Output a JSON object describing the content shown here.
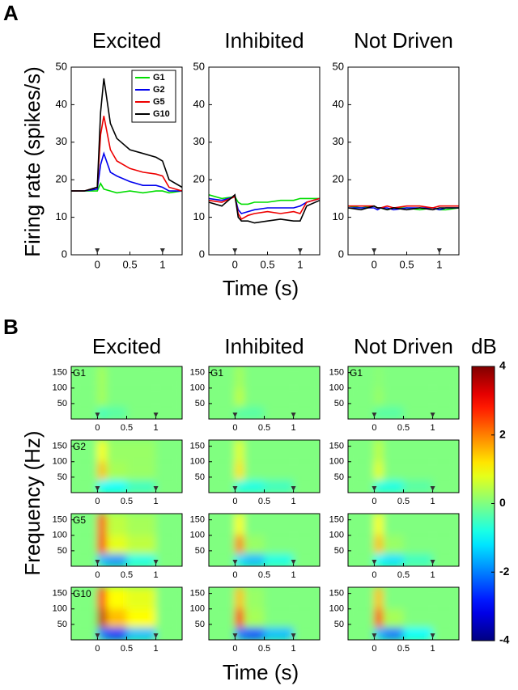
{
  "panel_a": {
    "label": "A",
    "y_label": "Firing rate (spikes/s)",
    "x_label": "Time (s)"
  },
  "panel_b": {
    "label": "B",
    "y_label": "Frequency (Hz)",
    "x_label": "Time (s)",
    "colorbar": {
      "title": "dB",
      "clim": [
        -4,
        4
      ],
      "ticks": [
        4,
        2,
        0,
        -2,
        -4
      ]
    }
  },
  "chart_data": [
    {
      "type": "line",
      "title": "Excited",
      "legend": "upper right",
      "xlim": [
        -0.4,
        1.3
      ],
      "ylim": [
        0,
        50
      ],
      "xticks": [
        0,
        0.5,
        1
      ],
      "yticks": [
        0,
        10,
        20,
        30,
        40,
        50
      ],
      "markers_x": [
        0,
        1
      ],
      "x": [
        -0.4,
        -0.2,
        0,
        0.05,
        0.1,
        0.2,
        0.3,
        0.5,
        0.7,
        0.9,
        1.0,
        1.1,
        1.3
      ],
      "series": [
        {
          "name": "G1",
          "color": "#00dd00",
          "values": [
            17,
            17,
            17,
            19,
            17.5,
            17,
            16.5,
            17,
            16.5,
            17,
            17,
            16.5,
            17
          ]
        },
        {
          "name": "G2",
          "color": "#0000ee",
          "values": [
            17,
            17,
            17.5,
            24,
            27,
            22,
            21,
            19.5,
            18.5,
            18.5,
            18,
            17,
            17
          ]
        },
        {
          "name": "G5",
          "color": "#ee0000",
          "values": [
            17,
            17,
            18,
            32,
            37,
            28,
            25,
            23,
            22,
            21.5,
            21,
            18,
            17
          ]
        },
        {
          "name": "G10",
          "color": "#000000",
          "values": [
            17,
            17,
            18,
            38,
            47,
            35,
            31,
            28,
            27,
            26,
            25,
            20,
            18
          ]
        }
      ]
    },
    {
      "type": "line",
      "title": "Inhibited",
      "xlim": [
        -0.4,
        1.3
      ],
      "ylim": [
        0,
        50
      ],
      "xticks": [
        0,
        0.5,
        1
      ],
      "yticks": [
        0,
        10,
        20,
        30,
        40,
        50
      ],
      "markers_x": [
        0,
        1
      ],
      "x": [
        -0.4,
        -0.2,
        0,
        0.05,
        0.1,
        0.2,
        0.3,
        0.5,
        0.7,
        0.9,
        1.0,
        1.1,
        1.3
      ],
      "series": [
        {
          "name": "G1",
          "color": "#00dd00",
          "values": [
            16,
            15,
            15.5,
            14,
            13.5,
            13.5,
            14,
            14,
            14.5,
            14.5,
            15,
            15,
            15
          ]
        },
        {
          "name": "G2",
          "color": "#0000ee",
          "values": [
            15,
            14.5,
            15.5,
            12,
            11,
            11.5,
            12,
            12.5,
            12.5,
            12.5,
            13,
            14,
            15
          ]
        },
        {
          "name": "G5",
          "color": "#ee0000",
          "values": [
            14.5,
            14,
            15.5,
            11,
            9.5,
            10.5,
            11,
            11.5,
            11,
            11.5,
            11,
            14,
            15
          ]
        },
        {
          "name": "G10",
          "color": "#000000",
          "values": [
            14,
            13,
            16,
            10,
            9,
            9,
            8.5,
            9,
            9.5,
            9,
            9,
            13,
            14.5
          ]
        }
      ]
    },
    {
      "type": "line",
      "title": "Not Driven",
      "xlim": [
        -0.4,
        1.3
      ],
      "ylim": [
        0,
        50
      ],
      "xticks": [
        0,
        0.5,
        1
      ],
      "yticks": [
        0,
        10,
        20,
        30,
        40,
        50
      ],
      "markers_x": [
        0,
        1
      ],
      "x": [
        -0.4,
        -0.2,
        0,
        0.05,
        0.1,
        0.2,
        0.3,
        0.5,
        0.7,
        0.9,
        1.0,
        1.1,
        1.3
      ],
      "series": [
        {
          "name": "G1",
          "color": "#00dd00",
          "values": [
            13,
            12.5,
            13,
            12.5,
            12.5,
            12,
            12.5,
            12.5,
            12,
            12.5,
            12,
            12,
            12.5
          ]
        },
        {
          "name": "G2",
          "color": "#0000ee",
          "values": [
            12.5,
            12.5,
            12.5,
            12,
            12.5,
            12.5,
            12,
            12.5,
            12.5,
            12.5,
            12,
            12.5,
            12.5
          ]
        },
        {
          "name": "G5",
          "color": "#ee0000",
          "values": [
            13,
            13,
            13,
            12.5,
            12.5,
            13,
            12.5,
            13,
            13,
            12.5,
            13,
            13,
            13
          ]
        },
        {
          "name": "G10",
          "color": "#000000",
          "values": [
            12.5,
            12,
            13,
            12.5,
            12.5,
            12,
            12.5,
            12,
            12.5,
            12,
            12.5,
            12.5,
            12.5
          ]
        }
      ]
    },
    {
      "type": "heatmap",
      "title": "Excited",
      "label": "G1",
      "xlim": [
        -0.45,
        1.45
      ],
      "ylim": [
        0,
        170
      ],
      "xticks": [
        0,
        0.5,
        1
      ],
      "yticks": [
        50,
        100,
        150
      ],
      "markers_x": [
        0,
        1
      ],
      "x_edges": [
        -0.45,
        0,
        0.15,
        0.5,
        1,
        1.45
      ],
      "y_edges": [
        0,
        40,
        100,
        170
      ],
      "z": [
        [
          0,
          -0.5,
          -0.3,
          0,
          0
        ],
        [
          0,
          0.3,
          0,
          0,
          0
        ],
        [
          0,
          0.3,
          0,
          0,
          0
        ]
      ]
    },
    {
      "type": "heatmap",
      "title": "Inhibited",
      "label": "G1",
      "xlim": [
        -0.45,
        1.45
      ],
      "ylim": [
        0,
        170
      ],
      "xticks": [
        0,
        0.5,
        1
      ],
      "yticks": [
        50,
        100,
        150
      ],
      "markers_x": [
        0,
        1
      ],
      "x_edges": [
        -0.45,
        0,
        0.15,
        0.5,
        1,
        1.45
      ],
      "y_edges": [
        0,
        40,
        100,
        170
      ],
      "z": [
        [
          0,
          -0.3,
          -0.3,
          0,
          0
        ],
        [
          0,
          0.5,
          0,
          0,
          0
        ],
        [
          0,
          0.3,
          0,
          0,
          0
        ]
      ]
    },
    {
      "type": "heatmap",
      "title": "Not Driven",
      "label": "G1",
      "xlim": [
        -0.45,
        1.45
      ],
      "ylim": [
        0,
        170
      ],
      "xticks": [
        0,
        0.5,
        1
      ],
      "yticks": [
        50,
        100,
        150
      ],
      "markers_x": [
        0,
        1
      ],
      "x_edges": [
        -0.45,
        0,
        0.15,
        0.5,
        1,
        1.45
      ],
      "y_edges": [
        0,
        40,
        100,
        170
      ],
      "z": [
        [
          0,
          -0.3,
          -0.3,
          0,
          0
        ],
        [
          0,
          0.2,
          0,
          0,
          0
        ],
        [
          0,
          0.1,
          0,
          0,
          0
        ]
      ]
    },
    {
      "type": "heatmap",
      "label": "G2",
      "xlim": [
        -0.45,
        1.45
      ],
      "ylim": [
        0,
        170
      ],
      "xticks": [
        0,
        0.5,
        1
      ],
      "yticks": [
        50,
        100,
        150
      ],
      "markers_x": [
        0,
        1
      ],
      "x_edges": [
        -0.45,
        0,
        0.15,
        0.5,
        1,
        1.45
      ],
      "y_edges": [
        0,
        40,
        100,
        170
      ],
      "z": [
        [
          0,
          -1,
          -1,
          -0.5,
          0
        ],
        [
          0,
          1.5,
          0.3,
          0.2,
          0
        ],
        [
          0,
          1,
          0.2,
          0.2,
          0
        ]
      ]
    },
    {
      "type": "heatmap",
      "xlim": [
        -0.45,
        1.45
      ],
      "ylim": [
        0,
        170
      ],
      "xticks": [
        0,
        0.5,
        1
      ],
      "yticks": [
        50,
        100,
        150
      ],
      "markers_x": [
        0,
        1
      ],
      "x_edges": [
        -0.45,
        0,
        0.15,
        0.5,
        1,
        1.45
      ],
      "y_edges": [
        0,
        40,
        100,
        170
      ],
      "z": [
        [
          0,
          -0.8,
          -0.8,
          -0.5,
          0
        ],
        [
          0,
          1.2,
          0,
          0,
          0
        ],
        [
          0,
          0.8,
          0,
          0,
          0
        ]
      ]
    },
    {
      "type": "heatmap",
      "xlim": [
        -0.45,
        1.45
      ],
      "ylim": [
        0,
        170
      ],
      "xticks": [
        0,
        0.5,
        1
      ],
      "yticks": [
        50,
        100,
        150
      ],
      "markers_x": [
        0,
        1
      ],
      "x_edges": [
        -0.45,
        0,
        0.15,
        0.5,
        1,
        1.45
      ],
      "y_edges": [
        0,
        40,
        100,
        170
      ],
      "z": [
        [
          0,
          -0.8,
          -0.8,
          -0.3,
          0
        ],
        [
          0,
          0.8,
          0,
          0,
          0
        ],
        [
          0,
          0.5,
          0,
          0,
          0
        ]
      ]
    },
    {
      "type": "heatmap",
      "label": "G5",
      "xlim": [
        -0.45,
        1.45
      ],
      "ylim": [
        0,
        170
      ],
      "xticks": [
        0,
        0.5,
        1
      ],
      "yticks": [
        50,
        100,
        150
      ],
      "markers_x": [
        0,
        1
      ],
      "x_edges": [
        -0.45,
        0,
        0.15,
        0.5,
        1,
        1.45
      ],
      "y_edges": [
        0,
        40,
        100,
        170
      ],
      "z": [
        [
          0,
          -1.5,
          -1.8,
          -0.8,
          0
        ],
        [
          0,
          3,
          0.8,
          0.5,
          0
        ],
        [
          0,
          2.5,
          0.5,
          0.3,
          0
        ]
      ]
    },
    {
      "type": "heatmap",
      "xlim": [
        -0.45,
        1.45
      ],
      "ylim": [
        0,
        170
      ],
      "xticks": [
        0,
        0.5,
        1
      ],
      "yticks": [
        50,
        100,
        150
      ],
      "markers_x": [
        0,
        1
      ],
      "x_edges": [
        -0.45,
        0,
        0.15,
        0.5,
        1,
        1.45
      ],
      "y_edges": [
        0,
        40,
        100,
        170
      ],
      "z": [
        [
          0,
          -1.2,
          -1.5,
          -0.8,
          0
        ],
        [
          0,
          2,
          0.2,
          0,
          0
        ],
        [
          0,
          1,
          0,
          0,
          0
        ]
      ]
    },
    {
      "type": "heatmap",
      "xlim": [
        -0.45,
        1.45
      ],
      "ylim": [
        0,
        170
      ],
      "xticks": [
        0,
        0.5,
        1
      ],
      "yticks": [
        50,
        100,
        150
      ],
      "markers_x": [
        0,
        1
      ],
      "x_edges": [
        -0.45,
        0,
        0.15,
        0.5,
        1,
        1.45
      ],
      "y_edges": [
        0,
        40,
        100,
        170
      ],
      "z": [
        [
          0,
          -1,
          -1.2,
          -0.5,
          0
        ],
        [
          0,
          1.5,
          0.2,
          0,
          0
        ],
        [
          0,
          1,
          0,
          0,
          0
        ]
      ]
    },
    {
      "type": "heatmap",
      "label": "G10",
      "xlim": [
        -0.45,
        1.45
      ],
      "ylim": [
        0,
        170
      ],
      "xticks": [
        0,
        0.5,
        1
      ],
      "yticks": [
        50,
        100,
        150
      ],
      "markers_x": [
        0,
        1
      ],
      "x_edges": [
        -0.45,
        0,
        0.15,
        0.5,
        1,
        1.45
      ],
      "y_edges": [
        0,
        40,
        100,
        170
      ],
      "z": [
        [
          0,
          -2,
          -2.5,
          -1.5,
          0
        ],
        [
          0,
          3.5,
          1.5,
          1,
          0
        ],
        [
          0,
          3,
          1,
          0.8,
          0
        ]
      ]
    },
    {
      "type": "heatmap",
      "xlim": [
        -0.45,
        1.45
      ],
      "ylim": [
        0,
        170
      ],
      "xticks": [
        0,
        0.5,
        1
      ],
      "yticks": [
        50,
        100,
        150
      ],
      "markers_x": [
        0,
        1
      ],
      "x_edges": [
        -0.45,
        0,
        0.15,
        0.5,
        1,
        1.45
      ],
      "y_edges": [
        0,
        40,
        100,
        170
      ],
      "z": [
        [
          0,
          -2,
          -2.3,
          -1.5,
          0
        ],
        [
          0,
          3,
          0.3,
          0,
          0
        ],
        [
          0,
          1.5,
          0.2,
          0,
          0
        ]
      ]
    },
    {
      "type": "heatmap",
      "xlim": [
        -0.45,
        1.45
      ],
      "ylim": [
        0,
        170
      ],
      "xticks": [
        0,
        0.5,
        1
      ],
      "yticks": [
        50,
        100,
        150
      ],
      "markers_x": [
        0,
        1
      ],
      "x_edges": [
        -0.45,
        0,
        0.15,
        0.5,
        1,
        1.45
      ],
      "y_edges": [
        0,
        40,
        100,
        170
      ],
      "z": [
        [
          0,
          -1.5,
          -2,
          -1,
          0
        ],
        [
          0,
          2.5,
          0.3,
          0,
          0
        ],
        [
          0,
          1.5,
          0,
          0,
          0
        ]
      ]
    }
  ]
}
